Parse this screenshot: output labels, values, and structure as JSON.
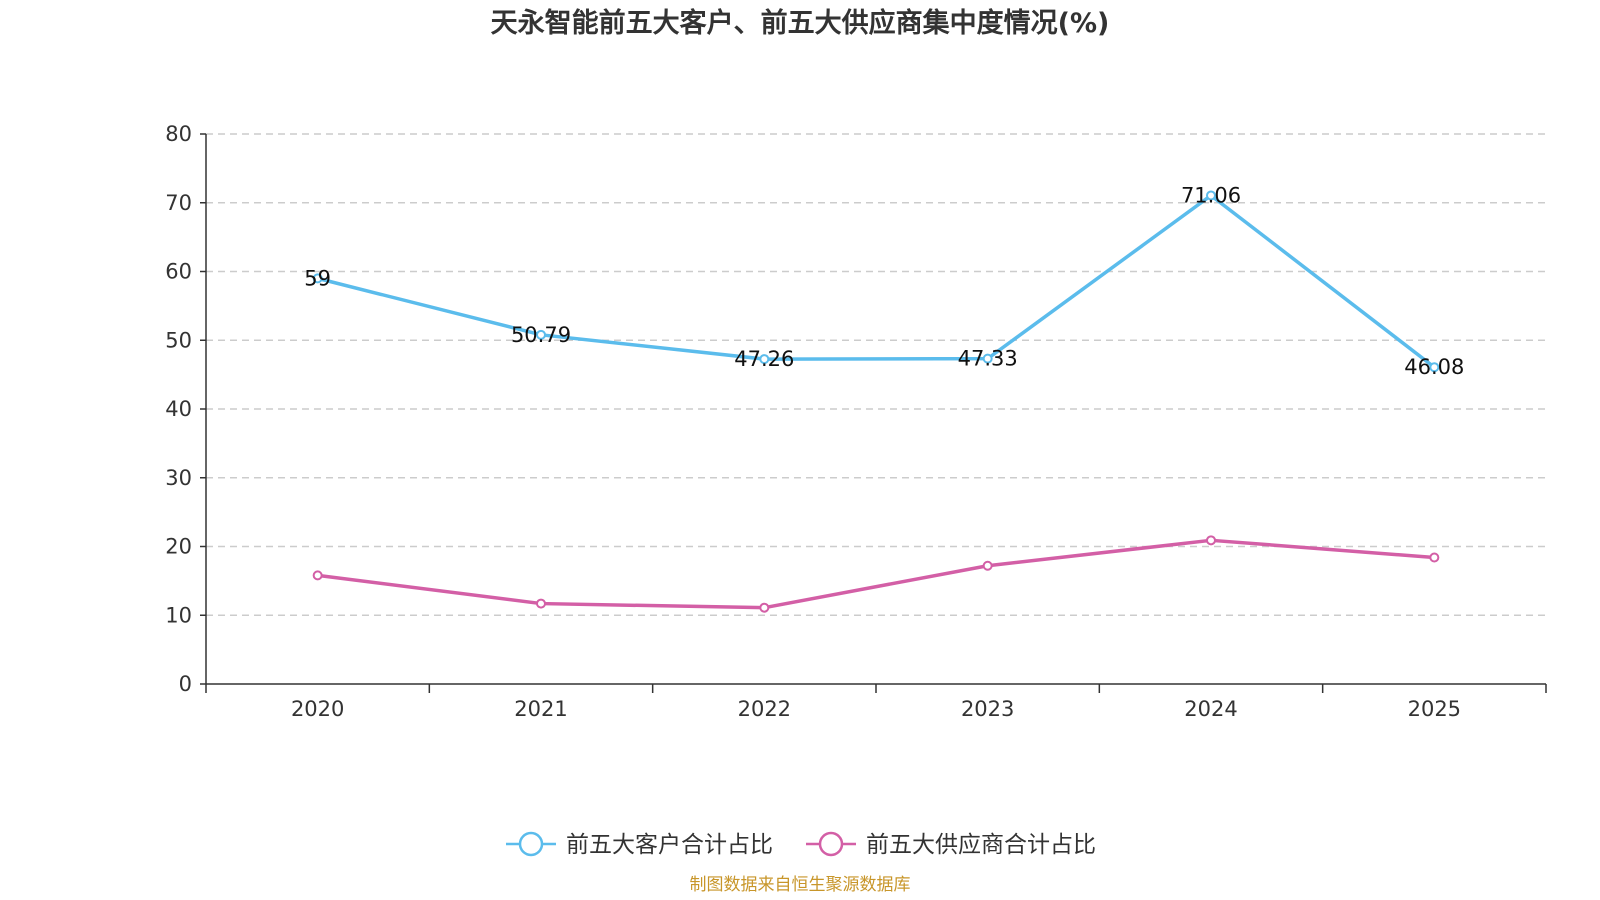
{
  "chart_data": {
    "type": "line",
    "title": "天永智能前五大客户、前五大供应商集中度情况(%)",
    "categories": [
      "2020",
      "2021",
      "2022",
      "2023",
      "2024",
      "2025"
    ],
    "ylim": [
      0,
      80
    ],
    "yticks": [
      0,
      10,
      20,
      30,
      40,
      50,
      60,
      70,
      80
    ],
    "grid": true,
    "legend_position": "bottom",
    "series": [
      {
        "name": "前五大客户合计占比",
        "color": "#5bbcec",
        "values": [
          59,
          50.79,
          47.26,
          47.33,
          71.06,
          46.08
        ],
        "labels": [
          "59",
          "50.79",
          "47.26",
          "47.33",
          "71.06",
          "46.08"
        ]
      },
      {
        "name": "前五大供应商合计占比",
        "color": "#d35fa6",
        "values": [
          15.8,
          11.7,
          11.1,
          17.2,
          20.9,
          18.4
        ]
      }
    ]
  },
  "source": "制图数据来自恒生聚源数据库"
}
